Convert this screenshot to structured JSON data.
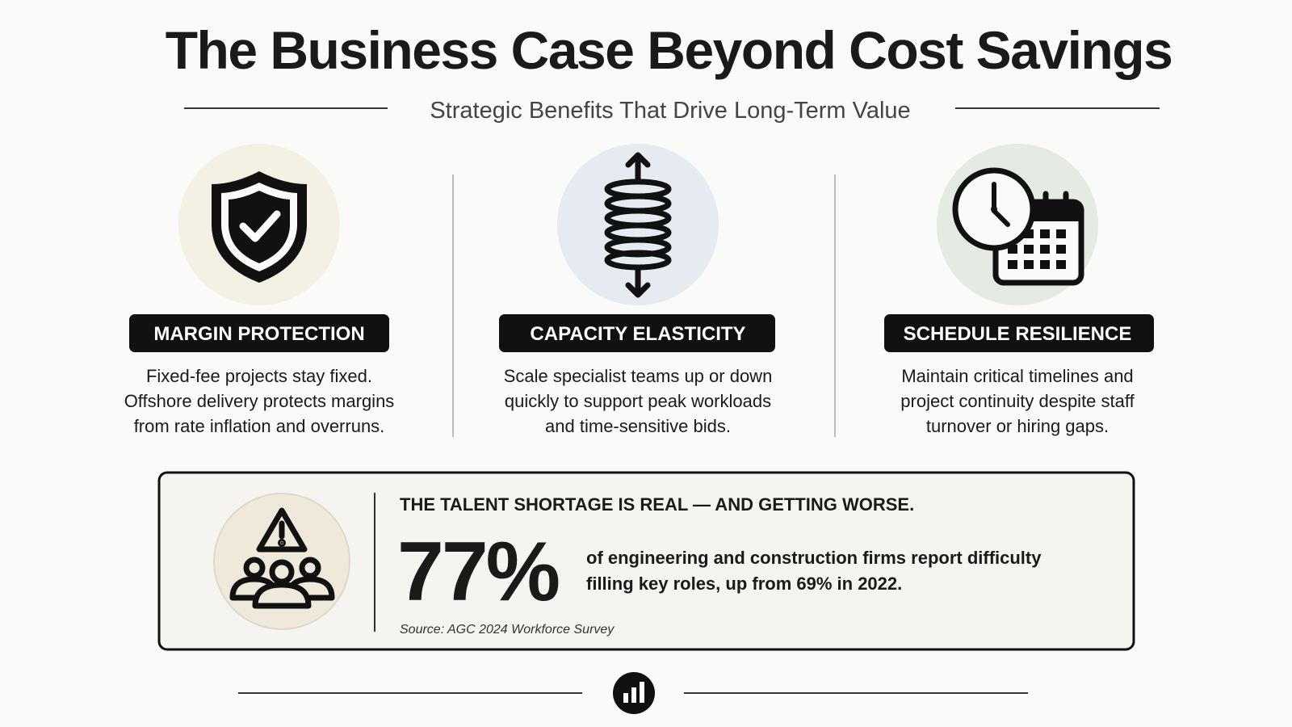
{
  "header": {
    "title": "The Business Case Beyond Cost Savings",
    "subtitle": "Strategic Benefits That Drive Long-Term Value"
  },
  "benefits": [
    {
      "label": "MARGIN PROTECTION",
      "lines": [
        "Fixed-fee projects stay fixed.",
        "Offshore delivery protects margins",
        "from rate inflation and overruns."
      ]
    },
    {
      "label": "CAPACITY ELASTICITY",
      "lines": [
        "Scale specialist teams up or down",
        "quickly to support peak workloads",
        "and time-sensitive bids."
      ]
    },
    {
      "label": "SCHEDULE RESILIENCE",
      "lines": [
        "Maintain critical timelines and",
        "project continuity despite staff",
        "turnover or hiring gaps."
      ]
    }
  ],
  "callout": {
    "heading": "THE TALENT SHORTAGE IS REAL — AND GETTING WORSE.",
    "stat": "77%",
    "lines": [
      "of engineering and construction firms report difficulty",
      "filling key roles, up from 69% in 2022."
    ],
    "source": "Source: AGC 2024 Workforce Survey"
  }
}
